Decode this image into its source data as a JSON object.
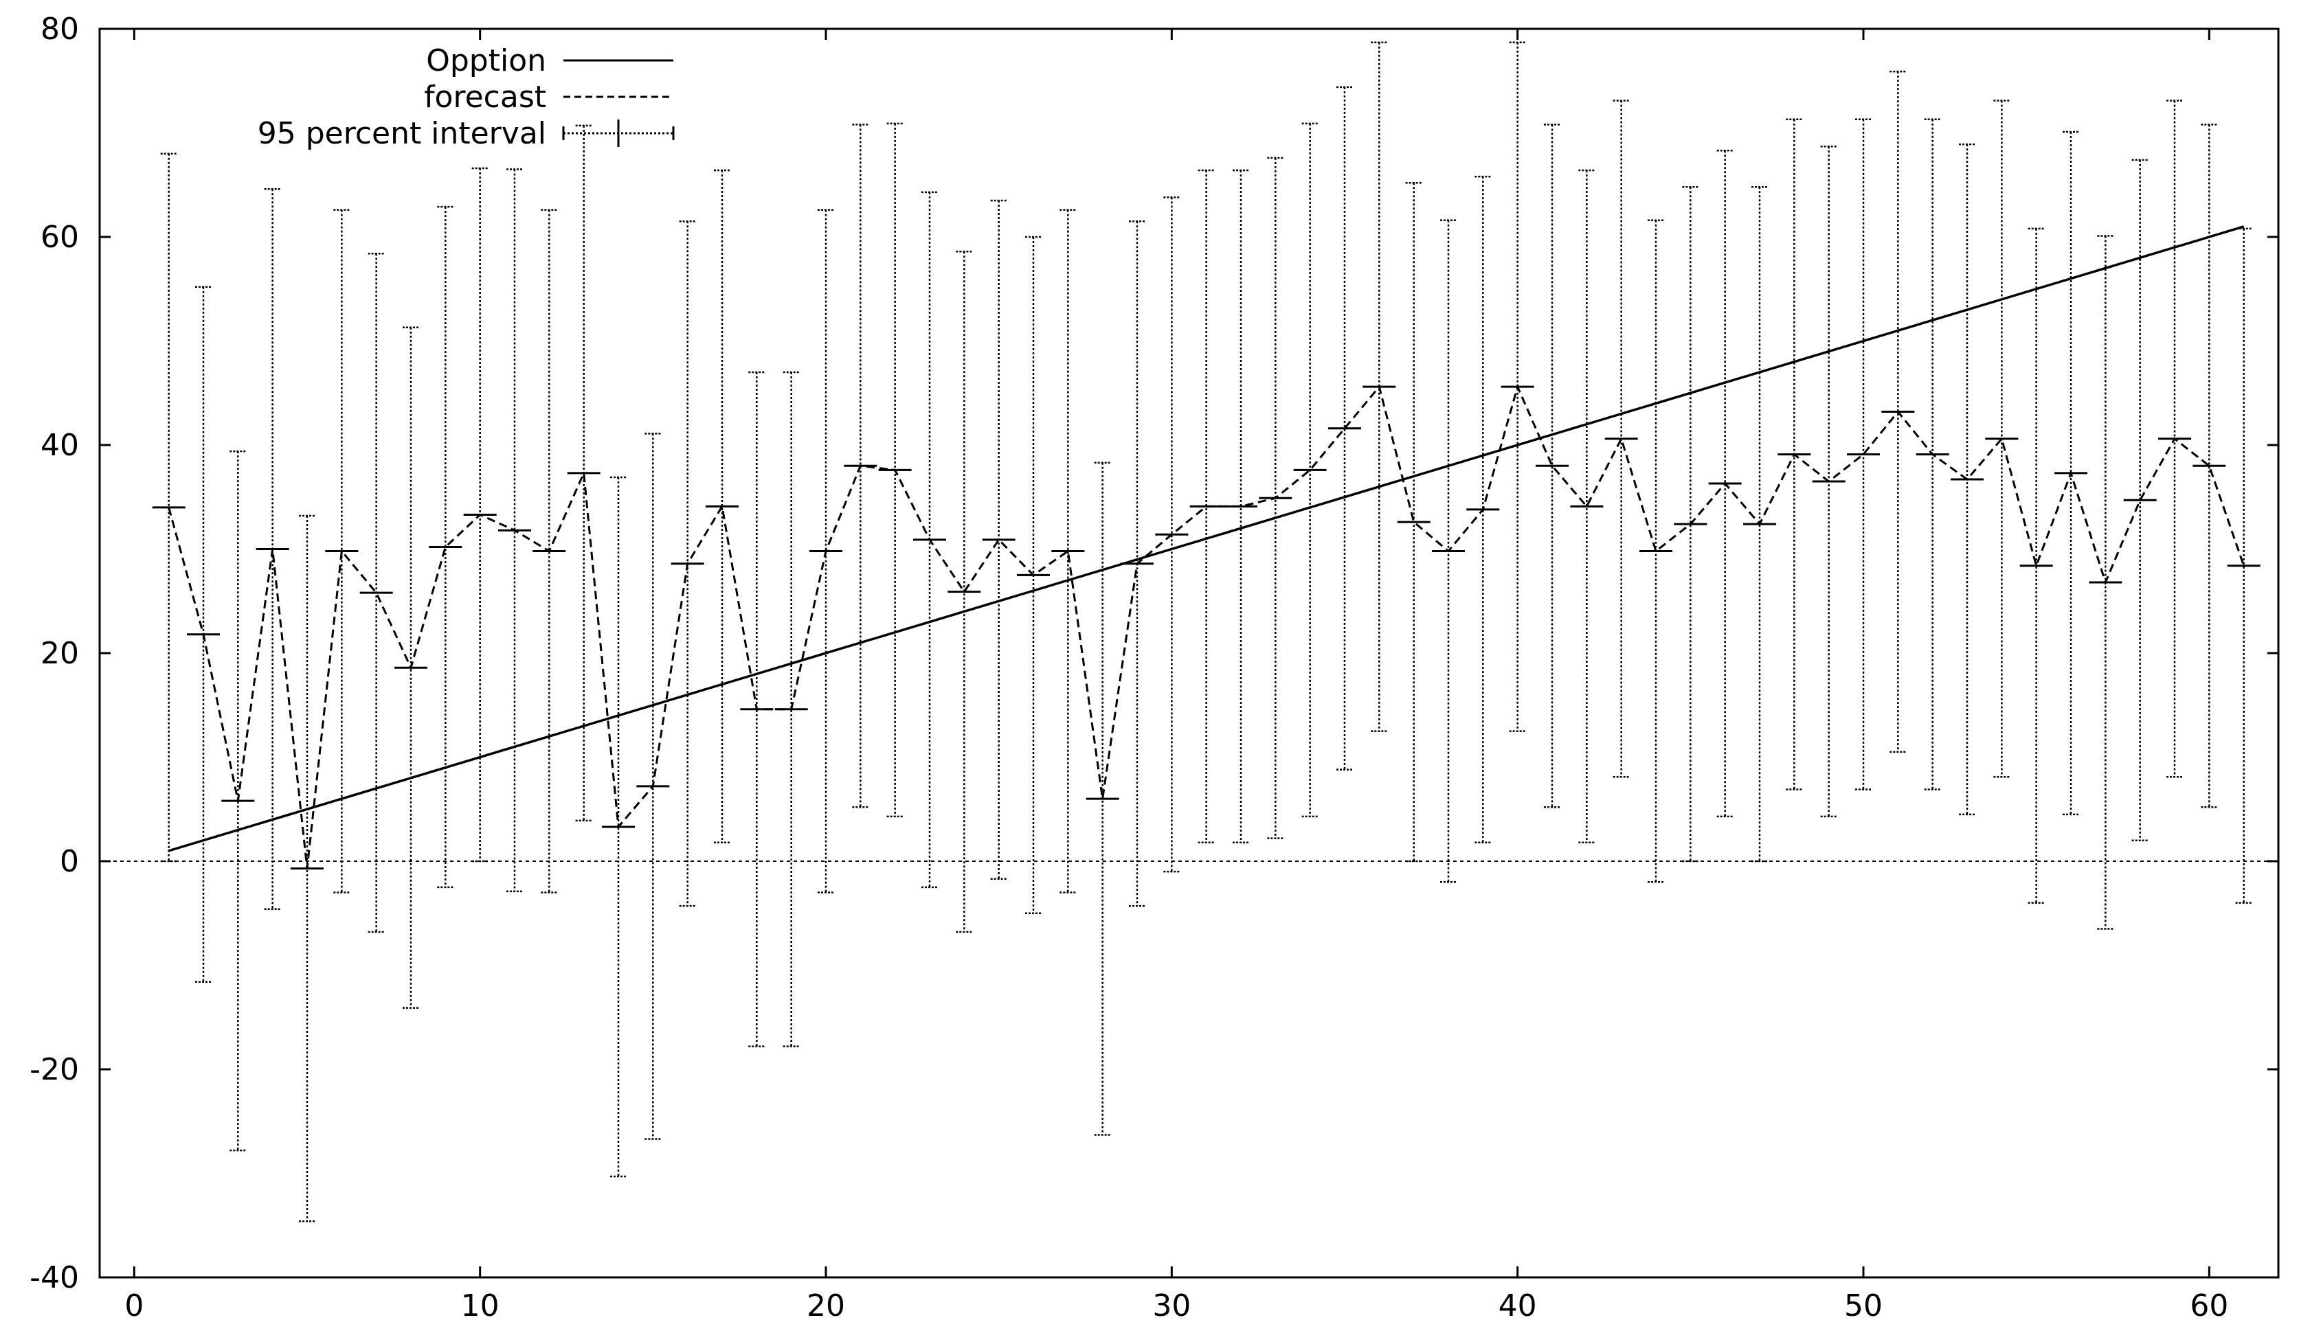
{
  "chart_data": {
    "type": "line",
    "title": "",
    "xlabel": "",
    "ylabel": "",
    "xlim": [
      -1,
      62
    ],
    "ylim": [
      -40,
      80
    ],
    "xticks": [
      0,
      10,
      20,
      30,
      40,
      50,
      60
    ],
    "yticks": [
      -40,
      -20,
      0,
      20,
      40,
      60,
      80
    ],
    "zero_line": true,
    "grid": false,
    "legend_position": "top-left",
    "series": [
      {
        "name": "Opption",
        "style": "solid",
        "x": [
          1,
          61
        ],
        "y": [
          1,
          61
        ]
      },
      {
        "name": "forecast",
        "style": "dashed",
        "x": [
          1,
          2,
          3,
          4,
          5,
          6,
          7,
          8,
          9,
          10,
          11,
          12,
          13,
          14,
          15,
          16,
          17,
          18,
          19,
          20,
          21,
          22,
          23,
          24,
          25,
          26,
          27,
          28,
          29,
          30,
          31,
          32,
          33,
          34,
          35,
          36,
          37,
          38,
          39,
          40,
          41,
          42,
          43,
          44,
          45,
          46,
          47,
          48,
          49,
          50,
          51,
          52,
          53,
          54,
          55,
          56,
          57,
          58,
          59,
          60,
          61
        ],
        "y": [
          34,
          21.8,
          5.8,
          30,
          -0.7,
          29.8,
          25.8,
          18.6,
          30.2,
          33.3,
          31.8,
          29.8,
          37.3,
          3.3,
          7.2,
          28.6,
          34.1,
          14.6,
          14.6,
          29.8,
          38,
          37.6,
          30.9,
          25.9,
          30.9,
          27.5,
          29.8,
          6,
          28.6,
          31.4,
          34.1,
          34.1,
          34.9,
          37.6,
          41.6,
          45.6,
          32.6,
          29.8,
          33.8,
          45.6,
          38,
          34.1,
          40.6,
          29.8,
          32.4,
          36.3,
          32.4,
          39.1,
          36.5,
          39.1,
          43.2,
          39.1,
          36.7,
          40.6,
          28.4,
          37.3,
          26.8,
          34.7,
          40.6,
          38,
          28.4
        ]
      },
      {
        "name": "95 percent interval",
        "style": "dotted-errorbar",
        "low": [
          0,
          -11.6,
          -27.8,
          -4.6,
          -34.6,
          -3,
          -6.8,
          -14.1,
          -2.5,
          0,
          -2.9,
          -3,
          3.9,
          -30.3,
          -26.7,
          -4.3,
          1.8,
          -17.8,
          -17.8,
          -3,
          5.2,
          4.3,
          -2.5,
          -6.8,
          -1.7,
          -5,
          -3,
          -26.3,
          -4.3,
          -1,
          1.8,
          1.8,
          2.2,
          4.3,
          8.8,
          12.5,
          0,
          -2,
          1.8,
          12.5,
          5.2,
          1.8,
          8.1,
          -2,
          0,
          4.3,
          0,
          6.9,
          4.3,
          6.9,
          10.5,
          6.9,
          4.5,
          8.1,
          -4,
          4.5,
          -6.5,
          2,
          8.1,
          5.2,
          -4
        ]
      }
    ]
  }
}
